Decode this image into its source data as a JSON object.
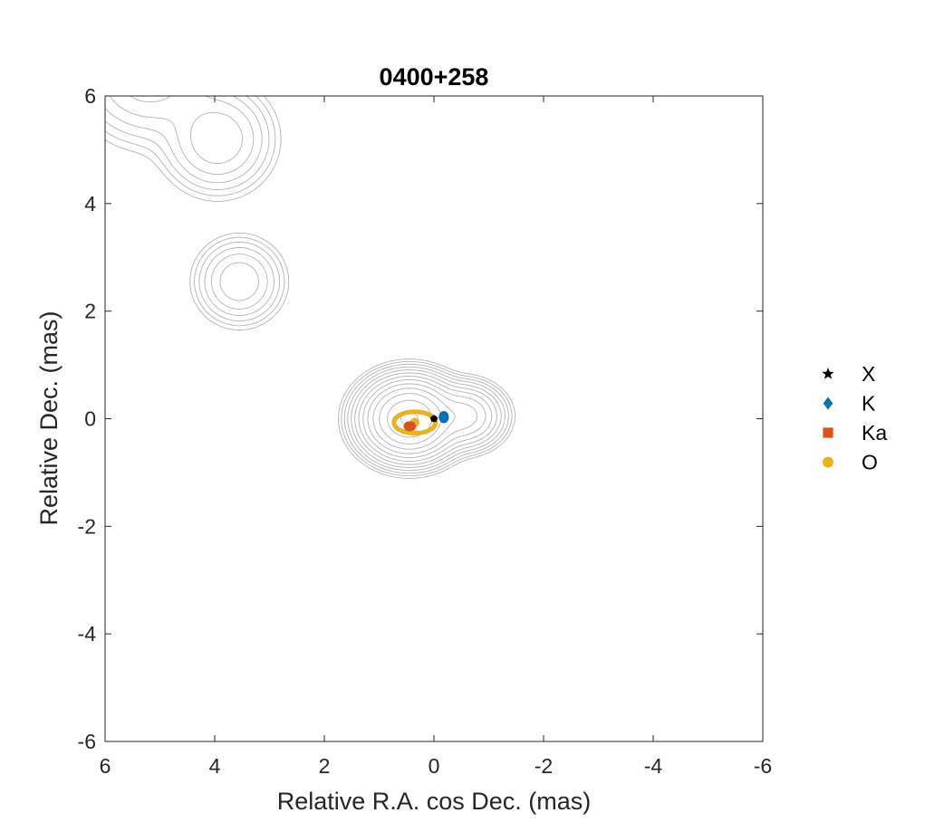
{
  "chart_data": {
    "type": "scatter",
    "title": "0400+258",
    "xlabel": "Relative R.A. cos Dec. (mas)",
    "ylabel": "Relative Dec. (mas)",
    "xlim": [
      6,
      -6
    ],
    "ylim": [
      -6,
      6
    ],
    "x_reversed": true,
    "xticks": [
      6,
      4,
      2,
      0,
      -2,
      -4,
      -6
    ],
    "yticks": [
      -6,
      -4,
      -2,
      0,
      2,
      4,
      6
    ],
    "xtick_labels": [
      "6",
      "4",
      "2",
      "0",
      "-2",
      "-4",
      "-6"
    ],
    "ytick_labels": [
      "-6",
      "-4",
      "-2",
      "0",
      "2",
      "4",
      "6"
    ],
    "grid": false,
    "legend_position": "outside-right",
    "contours": {
      "color": "#b3b3b3",
      "components": [
        {
          "x": 0.45,
          "y": 0.0,
          "a": 0.35,
          "b": 0.3,
          "weight": 1.0
        },
        {
          "x": -0.55,
          "y": 0.05,
          "a": 0.3,
          "b": 0.25,
          "weight": 0.13
        },
        {
          "x": 3.55,
          "y": 2.55,
          "a": 0.35,
          "b": 0.35,
          "weight": 0.03
        },
        {
          "x": 3.95,
          "y": 5.2,
          "a": 0.45,
          "b": 0.45,
          "weight": 0.03
        },
        {
          "x": 5.2,
          "y": 6.5,
          "a": 0.6,
          "b": 0.6,
          "weight": 0.03
        }
      ]
    },
    "series": [
      {
        "name": "X",
        "marker": "star",
        "color": "#000000",
        "points": [
          [
            0.0,
            0.0
          ]
        ],
        "errors": [
          [
            0.03,
            0.03
          ]
        ]
      },
      {
        "name": "K",
        "marker": "diamond",
        "color": "#0072BD",
        "points": [
          [
            -0.18,
            0.03
          ]
        ],
        "errors": [
          [
            0.06,
            0.08
          ]
        ]
      },
      {
        "name": "Ka",
        "marker": "square",
        "color": "#D95319",
        "points": [
          [
            0.44,
            -0.14
          ]
        ],
        "errors": [
          [
            0.08,
            0.06
          ]
        ]
      },
      {
        "name": "O",
        "marker": "circle",
        "color": "#EDB120",
        "points": [
          [
            0.35,
            -0.07
          ]
        ],
        "errors": [
          [
            0.38,
            0.2
          ]
        ]
      }
    ]
  }
}
